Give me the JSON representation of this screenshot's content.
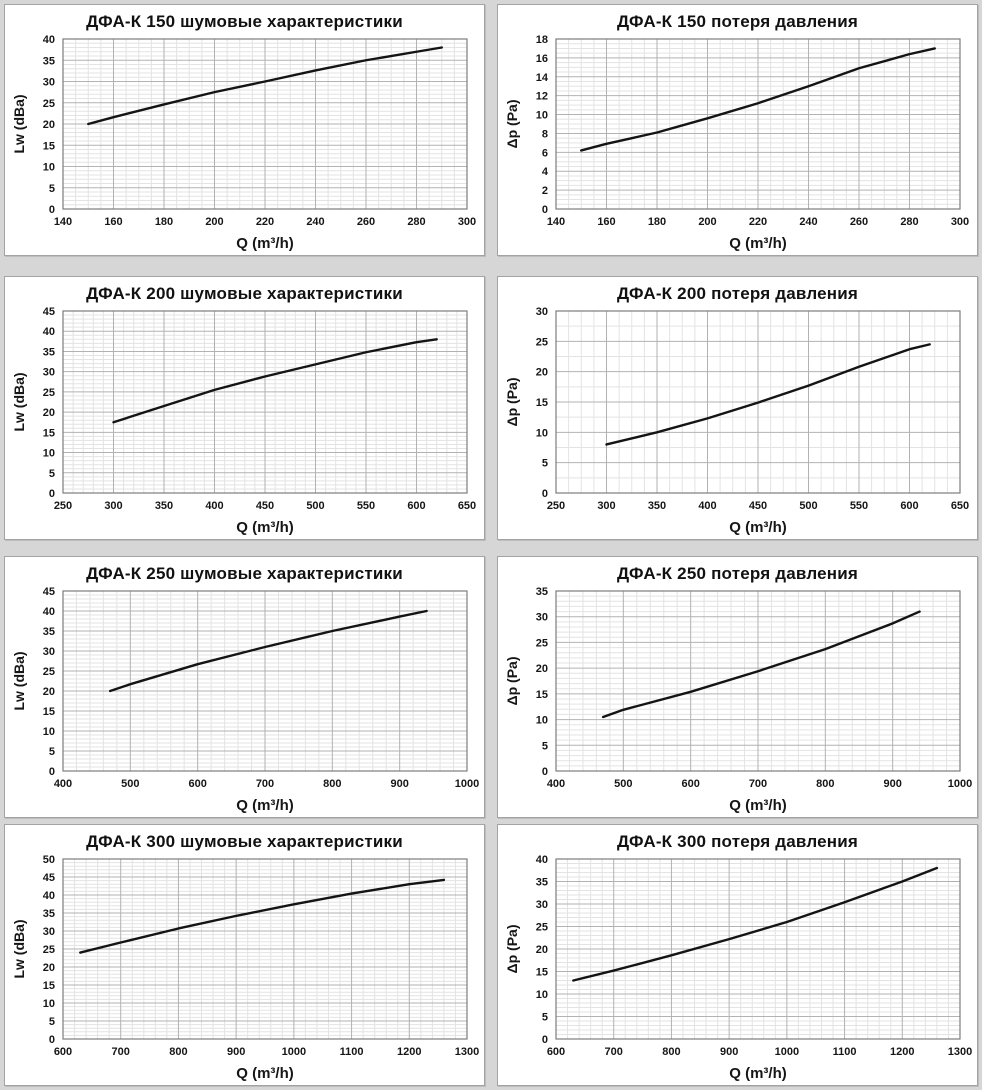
{
  "page": {
    "background_color": "#d6d6d6",
    "panel_background": "#ffffff",
    "panel_border_color": "#a3a3a3",
    "curve_color": "#141414",
    "grid_minor_color": "#e3e3e3",
    "grid_major_color": "#b2b2b2",
    "plot_border_color": "#7d7d7d",
    "text_color": "#111111"
  },
  "chart_data": [
    {
      "type": "line",
      "title": "ДФА-К 150 шумовые характеристики",
      "xlabel": "Q (m³/h)",
      "ylabel": "Lw (dBa)",
      "xlim": [
        140,
        300
      ],
      "xstep": 20,
      "xminor": 5,
      "ylim": [
        0,
        40
      ],
      "ystep": 5,
      "yminor": 1,
      "xticks": [
        140,
        160,
        180,
        200,
        220,
        240,
        260,
        280,
        300
      ],
      "yticks": [
        0,
        5,
        10,
        15,
        20,
        25,
        30,
        35,
        40
      ],
      "grid": true,
      "legend": "none",
      "series": [
        {
          "name": "Lw",
          "points": [
            [
              150,
              20
            ],
            [
              160,
              21.6
            ],
            [
              180,
              24.6
            ],
            [
              200,
              27.5
            ],
            [
              220,
              30
            ],
            [
              240,
              32.6
            ],
            [
              260,
              35
            ],
            [
              280,
              37
            ],
            [
              290,
              38
            ]
          ]
        }
      ]
    },
    {
      "type": "line",
      "title": "ДФА-К 150 потеря давления",
      "xlabel": "Q (m³/h)",
      "ylabel": "Δp (Pa)",
      "xlim": [
        140,
        300
      ],
      "xstep": 20,
      "xminor": 5,
      "ylim": [
        0,
        18
      ],
      "ystep": 2,
      "yminor": 0.5,
      "xticks": [
        140,
        160,
        180,
        200,
        220,
        240,
        260,
        280,
        300
      ],
      "yticks": [
        0,
        2,
        4,
        6,
        8,
        10,
        12,
        14,
        16,
        18
      ],
      "grid": true,
      "legend": "none",
      "series": [
        {
          "name": "Δp",
          "points": [
            [
              150,
              6.2
            ],
            [
              160,
              6.9
            ],
            [
              180,
              8.1
            ],
            [
              200,
              9.6
            ],
            [
              220,
              11.2
            ],
            [
              240,
              13
            ],
            [
              260,
              14.9
            ],
            [
              280,
              16.4
            ],
            [
              290,
              17
            ]
          ]
        }
      ]
    },
    {
      "type": "line",
      "title": "ДФА-К 200 шумовые характеристики",
      "xlabel": "Q (m³/h)",
      "ylabel": "Lw (dBa)",
      "xlim": [
        250,
        650
      ],
      "xstep": 50,
      "xminor": 10,
      "ylim": [
        0,
        45
      ],
      "ystep": 5,
      "yminor": 1,
      "xticks": [
        250,
        300,
        350,
        400,
        450,
        500,
        550,
        600,
        650
      ],
      "yticks": [
        0,
        5,
        10,
        15,
        20,
        25,
        30,
        35,
        40,
        45
      ],
      "grid": true,
      "legend": "none",
      "series": [
        {
          "name": "Lw",
          "points": [
            [
              300,
              17.5
            ],
            [
              350,
              21.5
            ],
            [
              400,
              25.5
            ],
            [
              450,
              28.8
            ],
            [
              500,
              31.8
            ],
            [
              550,
              34.8
            ],
            [
              600,
              37.3
            ],
            [
              620,
              38
            ]
          ]
        }
      ]
    },
    {
      "type": "line",
      "title": "ДФА-К 200 потеря давления",
      "xlabel": "Q (m³/h)",
      "ylabel": "Δp (Pa)",
      "xlim": [
        250,
        650
      ],
      "xstep": 50,
      "xminor": 12.5,
      "ylim": [
        0,
        30
      ],
      "ystep": 5,
      "yminor": 2.5,
      "xticks": [
        250,
        300,
        350,
        400,
        450,
        500,
        550,
        600,
        650
      ],
      "yticks": [
        0,
        5,
        10,
        15,
        20,
        25,
        30
      ],
      "grid": true,
      "legend": "none",
      "series": [
        {
          "name": "Δp",
          "points": [
            [
              300,
              8
            ],
            [
              350,
              10
            ],
            [
              400,
              12.3
            ],
            [
              450,
              14.9
            ],
            [
              500,
              17.7
            ],
            [
              550,
              20.8
            ],
            [
              600,
              23.7
            ],
            [
              620,
              24.5
            ]
          ]
        }
      ]
    },
    {
      "type": "line",
      "title": "ДФА-К 250 шумовые характеристики",
      "xlabel": "Q (m³/h)",
      "ylabel": "Lw (dBa)",
      "xlim": [
        400,
        1000
      ],
      "xstep": 100,
      "xminor": 20,
      "ylim": [
        0,
        45
      ],
      "ystep": 5,
      "yminor": 1,
      "xticks": [
        400,
        500,
        600,
        700,
        800,
        900,
        1000
      ],
      "yticks": [
        0,
        5,
        10,
        15,
        20,
        25,
        30,
        35,
        40,
        45
      ],
      "grid": true,
      "legend": "none",
      "series": [
        {
          "name": "Lw",
          "points": [
            [
              470,
              20
            ],
            [
              500,
              21.7
            ],
            [
              600,
              26.7
            ],
            [
              700,
              31
            ],
            [
              800,
              35
            ],
            [
              900,
              38.6
            ],
            [
              940,
              40
            ]
          ]
        }
      ]
    },
    {
      "type": "line",
      "title": "ДФА-К 250 потеря давления",
      "xlabel": "Q (m³/h)",
      "ylabel": "Δp (Pa)",
      "xlim": [
        400,
        1000
      ],
      "xstep": 100,
      "xminor": 20,
      "ylim": [
        0,
        35
      ],
      "ystep": 5,
      "yminor": 1,
      "xticks": [
        400,
        500,
        600,
        700,
        800,
        900,
        1000
      ],
      "yticks": [
        0,
        5,
        10,
        15,
        20,
        25,
        30,
        35
      ],
      "grid": true,
      "legend": "none",
      "series": [
        {
          "name": "Δp",
          "points": [
            [
              470,
              10.5
            ],
            [
              500,
              11.9
            ],
            [
              600,
              15.4
            ],
            [
              700,
              19.4
            ],
            [
              800,
              23.7
            ],
            [
              900,
              28.7
            ],
            [
              940,
              31
            ]
          ]
        }
      ]
    },
    {
      "type": "line",
      "title": "ДФА-К 300 шумовые характеристики",
      "xlabel": "Q (m³/h)",
      "ylabel": "Lw (dBa)",
      "xlim": [
        600,
        1300
      ],
      "xstep": 100,
      "xminor": 20,
      "ylim": [
        0,
        50
      ],
      "ystep": 5,
      "yminor": 1,
      "xticks": [
        600,
        700,
        800,
        900,
        1000,
        1100,
        1200,
        1300
      ],
      "yticks": [
        0,
        5,
        10,
        15,
        20,
        25,
        30,
        35,
        40,
        45,
        50
      ],
      "grid": true,
      "legend": "none",
      "series": [
        {
          "name": "Lw",
          "points": [
            [
              630,
              24
            ],
            [
              700,
              26.8
            ],
            [
              800,
              30.7
            ],
            [
              900,
              34.2
            ],
            [
              1000,
              37.4
            ],
            [
              1100,
              40.4
            ],
            [
              1200,
              43
            ],
            [
              1260,
              44.2
            ]
          ]
        }
      ]
    },
    {
      "type": "line",
      "title": "ДФА-К 300 потеря давления",
      "xlabel": "Q (m³/h)",
      "ylabel": "Δp (Pa)",
      "xlim": [
        600,
        1300
      ],
      "xstep": 100,
      "xminor": 20,
      "ylim": [
        0,
        40
      ],
      "ystep": 5,
      "yminor": 1,
      "xticks": [
        600,
        700,
        800,
        900,
        1000,
        1100,
        1200,
        1300
      ],
      "yticks": [
        0,
        5,
        10,
        15,
        20,
        25,
        30,
        35,
        40
      ],
      "grid": true,
      "legend": "none",
      "series": [
        {
          "name": "Δp",
          "points": [
            [
              630,
              13
            ],
            [
              700,
              15.2
            ],
            [
              800,
              18.6
            ],
            [
              900,
              22.2
            ],
            [
              1000,
              26
            ],
            [
              1100,
              30.4
            ],
            [
              1200,
              35
            ],
            [
              1260,
              38
            ]
          ]
        }
      ]
    }
  ]
}
